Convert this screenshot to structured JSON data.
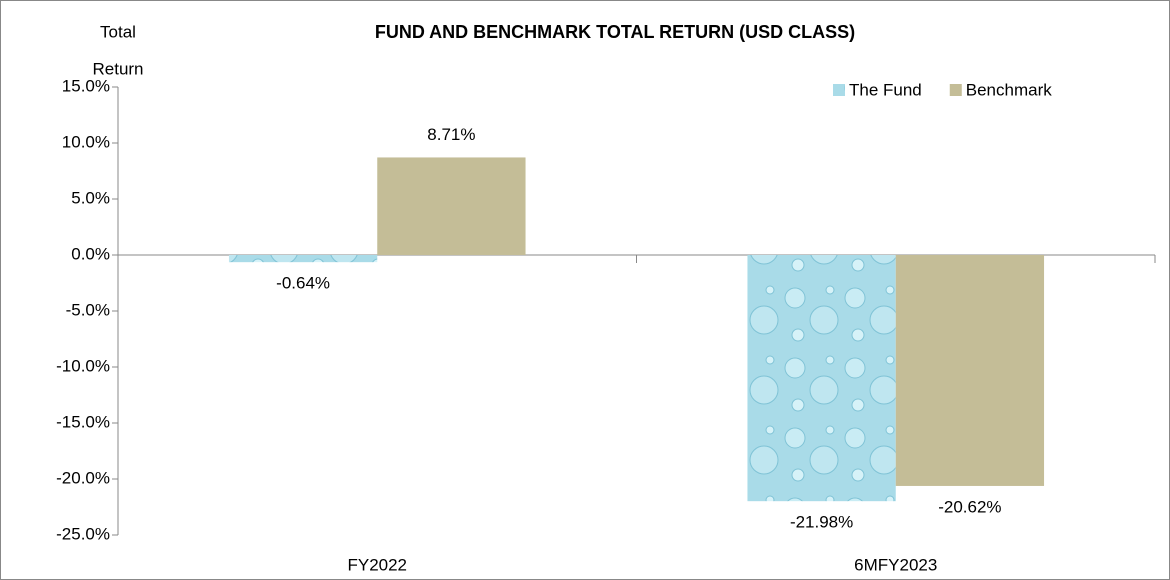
{
  "chart_data": {
    "type": "bar",
    "title": "FUND AND BENCHMARK TOTAL RETURN (USD CLASS)",
    "y_label": [
      "Total",
      "Return"
    ],
    "categories": [
      "FY2022",
      "6MFY2023"
    ],
    "series": [
      {
        "name": "The Fund",
        "color": "#a9dbe8",
        "values": [
          -0.64,
          -21.98
        ],
        "value_labels": [
          "-0.64%",
          "-21.98%"
        ]
      },
      {
        "name": "Benchmark",
        "color": "#c4bd97",
        "values": [
          8.71,
          -20.62
        ],
        "value_labels": [
          "8.71%",
          "-20.62%"
        ]
      }
    ],
    "ylim": [
      -25,
      15
    ],
    "yticks": [
      {
        "value": 15,
        "label": "15.0%"
      },
      {
        "value": 10,
        "label": "10.0%"
      },
      {
        "value": 5,
        "label": "5.0%"
      },
      {
        "value": 0,
        "label": "0.0%"
      },
      {
        "value": -5,
        "label": "-5.0%"
      },
      {
        "value": -10,
        "label": "-10.0%"
      },
      {
        "value": -15,
        "label": "-15.0%"
      },
      {
        "value": -20,
        "label": "-20.0%"
      },
      {
        "value": -25,
        "label": "-25.0%"
      }
    ],
    "grid": false,
    "legend": "upper right"
  }
}
